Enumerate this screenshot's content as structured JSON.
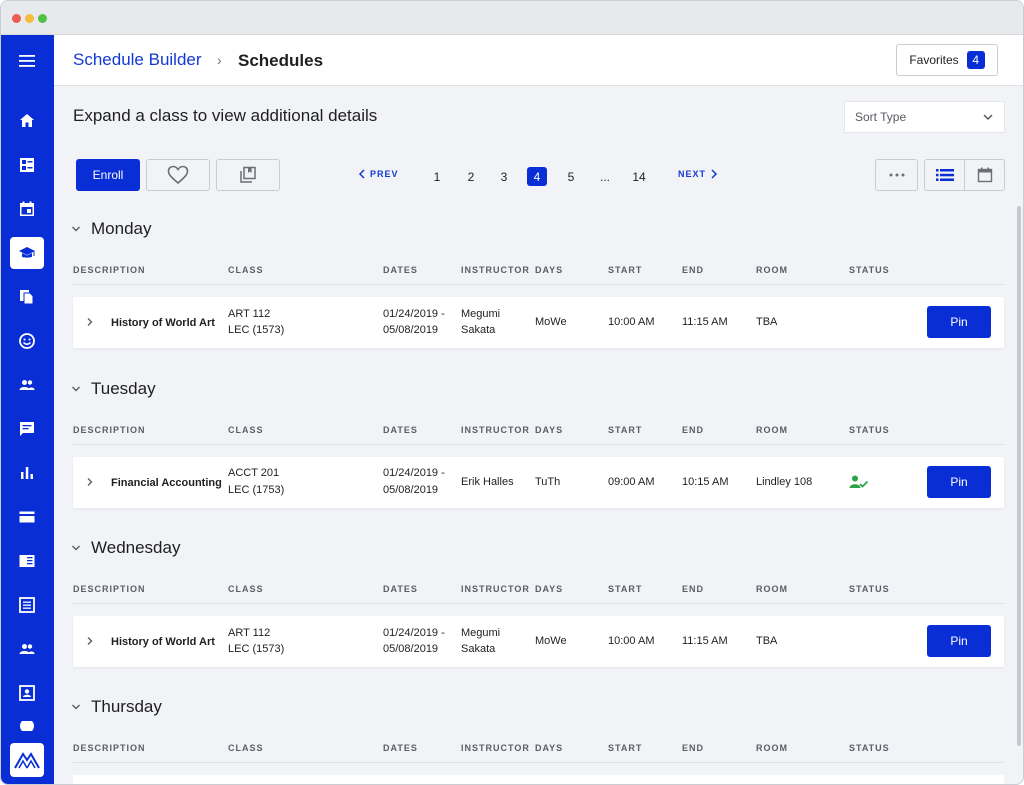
{
  "header": {
    "breadcrumb_link": "Schedule Builder",
    "breadcrumb_sep": "›",
    "breadcrumb_current": "Schedules",
    "favorites_label": "Favorites",
    "favorites_count": "4"
  },
  "main": {
    "title": "Expand a class to view additional details",
    "sort_placeholder": "Sort Type"
  },
  "toolbar": {
    "enroll_label": "Enroll",
    "heart_icon": "heart-icon",
    "bookmark_icon": "bookmark-stack-icon"
  },
  "pager": {
    "prev_label": "PREV",
    "next_label": "NEXT",
    "pages": [
      "1",
      "2",
      "3",
      "4",
      "5",
      "...",
      "14"
    ],
    "active_page": "4"
  },
  "columns": [
    "DESCRIPTION",
    "CLASS",
    "DATES",
    "INSTRUCTOR",
    "DAYS",
    "START",
    "END",
    "ROOM",
    "STATUS"
  ],
  "days": [
    {
      "name": "Monday",
      "rows": [
        {
          "description": "History of World Art",
          "class_line1": "ART 112",
          "class_line2": "LEC (1573)",
          "dates_line1": "01/24/2019 -",
          "dates_line2": "05/08/2019",
          "instructor_line1": "Megumi",
          "instructor_line2": "Sakata",
          "days": "MoWe",
          "start": "10:00 AM",
          "end": "11:15 AM",
          "room": "TBA",
          "status": "",
          "pin_label": "Pin"
        }
      ]
    },
    {
      "name": "Tuesday",
      "rows": [
        {
          "description": "Financial Accounting I",
          "class_line1": "ACCT 201",
          "class_line2": "LEC (1753)",
          "dates_line1": "01/24/2019 -",
          "dates_line2": "05/08/2019",
          "instructor_line1": "Erik Halles",
          "instructor_line2": "",
          "days": "TuTh",
          "start": "09:00 AM",
          "end": "10:15 AM",
          "room": "Lindley 108",
          "status": "user-check-icon",
          "pin_label": "Pin"
        }
      ]
    },
    {
      "name": "Wednesday",
      "rows": [
        {
          "description": "History of World Art",
          "class_line1": "ART 112",
          "class_line2": "LEC (1573)",
          "dates_line1": "01/24/2019 -",
          "dates_line2": "05/08/2019",
          "instructor_line1": "Megumi",
          "instructor_line2": "Sakata",
          "days": "MoWe",
          "start": "10:00 AM",
          "end": "11:15 AM",
          "room": "TBA",
          "status": "",
          "pin_label": "Pin"
        }
      ]
    },
    {
      "name": "Thursday",
      "rows": []
    }
  ],
  "sidebar": {
    "items": [
      {
        "icon": "home-icon"
      },
      {
        "icon": "dashboard-icon"
      },
      {
        "icon": "calendar-icon"
      },
      {
        "icon": "graduation-cap-icon",
        "active": true
      },
      {
        "icon": "documents-icon"
      },
      {
        "icon": "smiley-icon"
      },
      {
        "icon": "people-icon"
      },
      {
        "icon": "chat-icon"
      },
      {
        "icon": "bar-chart-icon"
      },
      {
        "icon": "credit-card-icon"
      },
      {
        "icon": "book-icon"
      },
      {
        "icon": "list-icon"
      },
      {
        "icon": "group-icon"
      },
      {
        "icon": "id-card-icon"
      }
    ]
  },
  "colors": {
    "primary": "#0a2ed6",
    "link": "#1438d6",
    "status_ok": "#2aa34a"
  }
}
